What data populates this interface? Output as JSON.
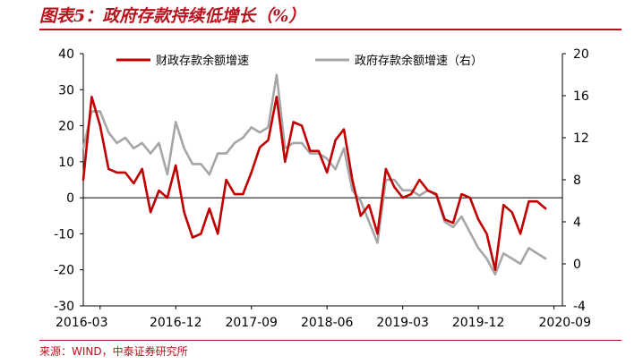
{
  "title": "图表5：政府存款持续低增长（%）",
  "source": "来源：WIND，中泰证券研究所",
  "colors": {
    "primary": "#c00000",
    "secondary": "#a6a6a6",
    "accent": "#b8121c"
  },
  "chart_data": {
    "type": "line",
    "x_range": [
      "2016-01",
      "2020-10"
    ],
    "x_ticks": [
      "2016-03",
      "2016-12",
      "2017-09",
      "2018-06",
      "2019-03",
      "2019-12",
      "2020-09"
    ],
    "y_left": {
      "range": [
        -30,
        40
      ],
      "ticks": [
        "40",
        "30",
        "20",
        "10",
        "0",
        "-10",
        "-20",
        "-30"
      ]
    },
    "y_right": {
      "range": [
        -4,
        20
      ],
      "ticks": [
        "20",
        "16",
        "12",
        "8",
        "4",
        "0",
        "-4"
      ]
    },
    "legend_position": "top",
    "series": [
      {
        "name": "财政存款余额增速",
        "axis": "left",
        "color": "#c00000",
        "points": [
          [
            "2016-01",
            5
          ],
          [
            "2016-02",
            28
          ],
          [
            "2016-03",
            20
          ],
          [
            "2016-04",
            8
          ],
          [
            "2016-05",
            7
          ],
          [
            "2016-06",
            7
          ],
          [
            "2016-07",
            4
          ],
          [
            "2016-08",
            8
          ],
          [
            "2016-09",
            -4
          ],
          [
            "2016-10",
            2
          ],
          [
            "2016-11",
            0
          ],
          [
            "2016-12",
            9
          ],
          [
            "2017-01",
            -4
          ],
          [
            "2017-02",
            -11
          ],
          [
            "2017-03",
            -10
          ],
          [
            "2017-04",
            -3
          ],
          [
            "2017-05",
            -10
          ],
          [
            "2017-06",
            5
          ],
          [
            "2017-07",
            1
          ],
          [
            "2017-08",
            1
          ],
          [
            "2017-09",
            7
          ],
          [
            "2017-10",
            14
          ],
          [
            "2017-11",
            16
          ],
          [
            "2017-12",
            28
          ],
          [
            "2018-01",
            10
          ],
          [
            "2018-02",
            21
          ],
          [
            "2018-03",
            20
          ],
          [
            "2018-04",
            13
          ],
          [
            "2018-05",
            13
          ],
          [
            "2018-06",
            7
          ],
          [
            "2018-07",
            16
          ],
          [
            "2018-08",
            19
          ],
          [
            "2018-09",
            5
          ],
          [
            "2018-10",
            -5
          ],
          [
            "2018-11",
            -2
          ],
          [
            "2018-12",
            -10
          ],
          [
            "2019-01",
            8
          ],
          [
            "2019-02",
            3
          ],
          [
            "2019-03",
            0
          ],
          [
            "2019-04",
            1
          ],
          [
            "2019-05",
            5
          ],
          [
            "2019-06",
            2
          ],
          [
            "2019-07",
            1
          ],
          [
            "2019-08",
            -6
          ],
          [
            "2019-09",
            -7
          ],
          [
            "2019-10",
            1
          ],
          [
            "2019-11",
            0
          ],
          [
            "2019-12",
            -6
          ],
          [
            "2020-01",
            -10
          ],
          [
            "2020-02",
            -20
          ],
          [
            "2020-03",
            -2
          ],
          [
            "2020-04",
            -4
          ],
          [
            "2020-05",
            -10
          ],
          [
            "2020-06",
            -1
          ],
          [
            "2020-07",
            -1
          ],
          [
            "2020-08",
            -3
          ]
        ]
      },
      {
        "name": "政府存款余额增速（右）",
        "axis": "right",
        "color": "#a6a6a6",
        "points": [
          [
            "2016-01",
            11
          ],
          [
            "2016-02",
            14.5
          ],
          [
            "2016-03",
            14.5
          ],
          [
            "2016-04",
            12.5
          ],
          [
            "2016-05",
            11.5
          ],
          [
            "2016-06",
            12
          ],
          [
            "2016-07",
            11
          ],
          [
            "2016-08",
            11.5
          ],
          [
            "2016-09",
            10.5
          ],
          [
            "2016-10",
            11.5
          ],
          [
            "2016-11",
            8.5
          ],
          [
            "2016-12",
            13.5
          ],
          [
            "2017-01",
            11
          ],
          [
            "2017-02",
            9.5
          ],
          [
            "2017-03",
            9.5
          ],
          [
            "2017-04",
            8.5
          ],
          [
            "2017-05",
            10.5
          ],
          [
            "2017-06",
            10.5
          ],
          [
            "2017-07",
            11.5
          ],
          [
            "2017-08",
            12
          ],
          [
            "2017-09",
            13
          ],
          [
            "2017-10",
            12.5
          ],
          [
            "2017-11",
            13
          ],
          [
            "2017-12",
            18
          ],
          [
            "2018-01",
            11
          ],
          [
            "2018-02",
            11.5
          ],
          [
            "2018-03",
            11.5
          ],
          [
            "2018-04",
            10.5
          ],
          [
            "2018-05",
            10.5
          ],
          [
            "2018-06",
            10
          ],
          [
            "2018-07",
            9
          ],
          [
            "2018-08",
            11
          ],
          [
            "2018-09",
            7
          ],
          [
            "2018-10",
            6
          ],
          [
            "2018-11",
            4
          ],
          [
            "2018-12",
            2
          ],
          [
            "2019-01",
            8
          ],
          [
            "2019-02",
            8
          ],
          [
            "2019-03",
            7
          ],
          [
            "2019-04",
            7
          ],
          [
            "2019-05",
            6.5
          ],
          [
            "2019-06",
            7
          ],
          [
            "2019-07",
            6.5
          ],
          [
            "2019-08",
            4
          ],
          [
            "2019-09",
            3.5
          ],
          [
            "2019-10",
            4.5
          ],
          [
            "2019-11",
            3
          ],
          [
            "2019-12",
            1.5
          ],
          [
            "2020-01",
            0.5
          ],
          [
            "2020-02",
            -1
          ],
          [
            "2020-03",
            1
          ],
          [
            "2020-04",
            0.5
          ],
          [
            "2020-05",
            0
          ],
          [
            "2020-06",
            1.5
          ],
          [
            "2020-07",
            1
          ],
          [
            "2020-08",
            0.5
          ]
        ]
      }
    ]
  }
}
